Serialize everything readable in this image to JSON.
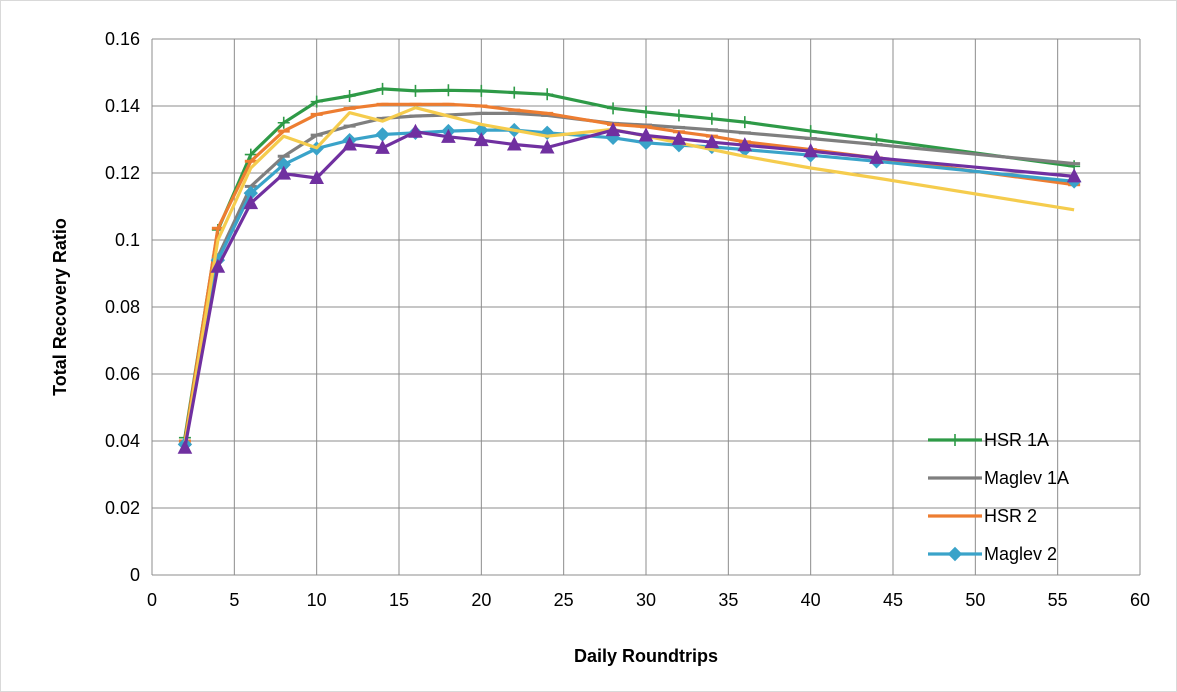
{
  "chart_data": {
    "type": "line",
    "xlabel": "Daily Roundtrips",
    "ylabel": "Total Recovery Ratio",
    "xlim": [
      0,
      60
    ],
    "ylim": [
      0,
      0.16
    ],
    "xticks": [
      "0",
      "5",
      "10",
      "15",
      "20",
      "25",
      "30",
      "35",
      "40",
      "45",
      "50",
      "55",
      "60"
    ],
    "yticks": [
      "0",
      "0.02",
      "0.04",
      "0.06",
      "0.08",
      "0.1",
      "0.12",
      "0.14",
      "0.16"
    ],
    "grid": true,
    "legend_position": "bottom-right",
    "series": [
      {
        "name": "HSR 1A",
        "color": "#2e9a47",
        "marker": "plus",
        "x": [
          2,
          4,
          6,
          8,
          10,
          12,
          14,
          16,
          18,
          20,
          22,
          24,
          28,
          30,
          32,
          34,
          36,
          40,
          44,
          56
        ],
        "y": [
          0.041,
          0.103,
          0.1255,
          0.135,
          0.1413,
          0.143,
          0.1451,
          0.1445,
          0.1447,
          0.1445,
          0.144,
          0.1435,
          0.1393,
          0.1382,
          0.1372,
          0.1362,
          0.1352,
          0.1325,
          0.13,
          0.122
        ]
      },
      {
        "name": "Maglev 1A",
        "color": "#7f7f7f",
        "marker": "dash",
        "x": [
          2,
          4,
          6,
          8,
          10,
          12,
          14,
          16,
          18,
          20,
          22,
          24,
          28,
          30,
          32,
          34,
          36,
          40,
          44,
          56
        ],
        "y": [
          0.039,
          0.095,
          0.116,
          0.125,
          0.1313,
          0.134,
          0.1363,
          0.137,
          0.1373,
          0.1378,
          0.1378,
          0.1372,
          0.1348,
          0.1343,
          0.1336,
          0.1329,
          0.132,
          0.1303,
          0.1285,
          0.1228
        ]
      },
      {
        "name": "HSR 2",
        "color": "#ed7d31",
        "marker": "dash",
        "x": [
          2,
          4,
          6,
          8,
          10,
          12,
          14,
          16,
          18,
          20,
          22,
          24,
          28,
          30,
          32,
          34,
          36,
          40,
          44,
          56
        ],
        "y": [
          0.04,
          0.1035,
          0.1235,
          0.1325,
          0.1375,
          0.1393,
          0.1405,
          0.1405,
          0.1405,
          0.14,
          0.1388,
          0.1378,
          0.1345,
          0.1338,
          0.1323,
          0.131,
          0.1293,
          0.127,
          0.1245,
          0.1165
        ]
      },
      {
        "name": "Maglev 2",
        "color": "#3aa3c9",
        "marker": "diamond",
        "x": [
          2,
          4,
          6,
          8,
          10,
          12,
          14,
          16,
          18,
          20,
          22,
          24,
          28,
          30,
          32,
          34,
          36,
          40,
          44,
          56
        ],
        "y": [
          0.039,
          0.094,
          0.114,
          0.1225,
          0.1273,
          0.1298,
          0.1315,
          0.132,
          0.1325,
          0.1328,
          0.1328,
          0.132,
          0.1305,
          0.129,
          0.1283,
          0.1278,
          0.127,
          0.1253,
          0.1235,
          0.1175
        ]
      },
      {
        "name": "",
        "color": "#f5cc4d",
        "marker": "none",
        "x": [
          2,
          4,
          6,
          8,
          10,
          12,
          14,
          16,
          20,
          24,
          28,
          32,
          36,
          40,
          44,
          56
        ],
        "y": [
          0.039,
          0.1,
          0.1215,
          0.131,
          0.1275,
          0.138,
          0.1355,
          0.1395,
          0.1345,
          0.131,
          0.133,
          0.129,
          0.125,
          0.1215,
          0.1185,
          0.109
        ]
      },
      {
        "name": "",
        "color": "#7030a0",
        "marker": "triangle",
        "x": [
          2,
          4,
          6,
          8,
          10,
          12,
          14,
          16,
          18,
          20,
          22,
          24,
          28,
          30,
          32,
          34,
          36,
          40,
          44,
          56
        ],
        "y": [
          0.038,
          0.092,
          0.111,
          0.1198,
          0.1185,
          0.1285,
          0.1275,
          0.1323,
          0.1308,
          0.1298,
          0.1285,
          0.1276,
          0.1328,
          0.1312,
          0.1302,
          0.1292,
          0.1283,
          0.1265,
          0.1245,
          0.119
        ]
      }
    ],
    "legend": [
      "HSR 1A",
      "Maglev 1A",
      "HSR 2",
      "Maglev 2"
    ]
  }
}
